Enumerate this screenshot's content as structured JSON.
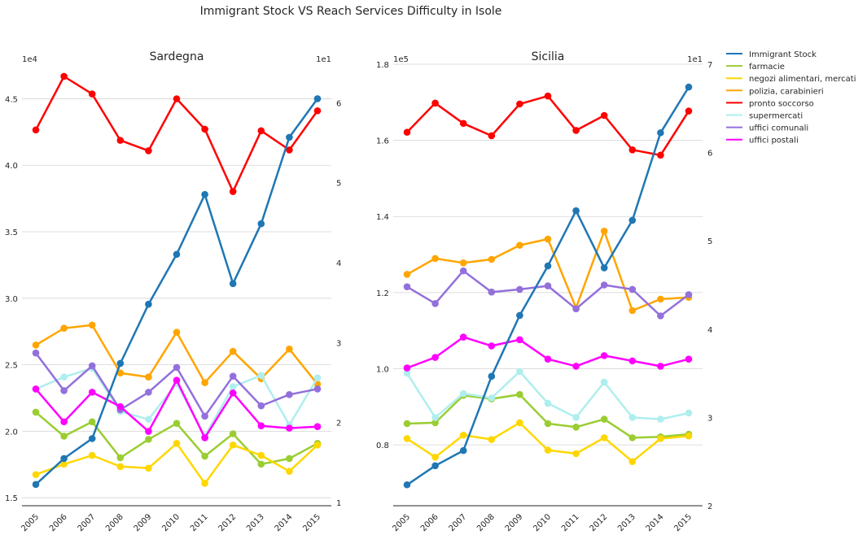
{
  "suptitle": "Immigrant Stock VS Reach Services Difficulty in Isole",
  "legend": [
    {
      "name": "Immigrant Stock",
      "color": "#1f77b4"
    },
    {
      "name": "farmacie",
      "color": "#9acd32"
    },
    {
      "name": "negozi alimentari, mercati",
      "color": "#ffd700"
    },
    {
      "name": "polizia, carabinieri",
      "color": "#ffa500"
    },
    {
      "name": "pronto soccorso",
      "color": "#ff0000"
    },
    {
      "name": "supermercati",
      "color": "#afeeee"
    },
    {
      "name": "uffici comunali",
      "color": "#9370db"
    },
    {
      "name": "uffici postali",
      "color": "#ff00ff"
    }
  ],
  "chart_data": [
    {
      "type": "line",
      "title": "Sardegna",
      "x": [
        "2005",
        "2006",
        "2007",
        "2008",
        "2009",
        "2010",
        "2011",
        "2012",
        "2013",
        "2014",
        "2015"
      ],
      "grid": true,
      "left_axis": {
        "ylim": [
          14400,
          46800
        ],
        "ticks": [
          "1.5",
          "2.0",
          "2.5",
          "3.0",
          "3.5",
          "4.0",
          "4.5"
        ],
        "tick_values": [
          15000,
          20000,
          25000,
          30000,
          35000,
          40000,
          45000
        ],
        "offset_label": "1e4"
      },
      "right_axis": {
        "ylim": [
          9.6,
          63.5
        ],
        "ticks": [
          "1",
          "2",
          "3",
          "4",
          "5",
          "6"
        ],
        "tick_values": [
          10,
          20,
          30,
          40,
          50,
          60
        ],
        "offset_label": "1e1"
      },
      "series": [
        {
          "name": "Immigrant Stock",
          "axis": "left",
          "values": [
            16000,
            17950,
            19450,
            25100,
            29550,
            33300,
            37800,
            31100,
            35600,
            42100,
            45000
          ]
        },
        {
          "name": "farmacie",
          "axis": "right",
          "values": [
            21.3,
            18.3,
            20.1,
            15.6,
            17.9,
            19.9,
            15.8,
            18.6,
            14.8,
            15.5,
            17.4
          ]
        },
        {
          "name": "negozi alimentari, mercati",
          "axis": "right",
          "values": [
            13.5,
            14.8,
            15.9,
            14.5,
            14.3,
            17.4,
            12.4,
            17.2,
            15.9,
            13.9,
            17.2
          ]
        },
        {
          "name": "polizia, carabinieri",
          "axis": "right",
          "values": [
            29.7,
            31.8,
            32.2,
            26.2,
            25.7,
            31.3,
            25.0,
            28.9,
            25.5,
            29.2,
            24.8
          ]
        },
        {
          "name": "pronto soccorso",
          "axis": "right",
          "values": [
            56.6,
            63.3,
            61.1,
            55.3,
            54.0,
            60.5,
            56.7,
            48.9,
            56.5,
            54.1,
            59.0
          ]
        },
        {
          "name": "supermercati",
          "axis": "right",
          "values": [
            24.2,
            25.7,
            26.8,
            21.4,
            20.4,
            24.9,
            18.3,
            24.5,
            25.9,
            19.7,
            25.6
          ]
        },
        {
          "name": "uffici comunali",
          "axis": "right",
          "values": [
            28.7,
            24.0,
            27.1,
            21.6,
            23.8,
            26.9,
            20.8,
            25.8,
            22.1,
            23.5,
            24.2
          ]
        },
        {
          "name": "uffici postali",
          "axis": "right",
          "values": [
            24.2,
            20.1,
            23.8,
            22.0,
            18.9,
            25.3,
            18.1,
            23.7,
            19.6,
            19.3,
            19.5
          ]
        }
      ]
    },
    {
      "type": "line",
      "title": "Sicilia",
      "x": [
        "2005",
        "2006",
        "2007",
        "2008",
        "2009",
        "2010",
        "2011",
        "2012",
        "2013",
        "2014",
        "2015"
      ],
      "grid": true,
      "left_axis": {
        "ylim": [
          64000,
          180000
        ],
        "ticks": [
          "0.8",
          "1.0",
          "1.2",
          "1.4",
          "1.6",
          "1.8"
        ],
        "tick_values": [
          80000,
          100000,
          120000,
          140000,
          160000,
          180000
        ],
        "offset_label": "1e5"
      },
      "right_axis": {
        "ylim": [
          20,
          70
        ],
        "ticks": [
          "2",
          "3",
          "4",
          "5",
          "6",
          "7"
        ],
        "tick_values": [
          20,
          30,
          40,
          50,
          60,
          70
        ],
        "offset_label": "1e1"
      },
      "series": [
        {
          "name": "Immigrant Stock",
          "axis": "left",
          "values": [
            69500,
            74500,
            78500,
            98000,
            114000,
            127000,
            141500,
            126500,
            139000,
            162000,
            174000
          ]
        },
        {
          "name": "farmacie",
          "axis": "right",
          "values": [
            29.3,
            29.4,
            32.5,
            32.1,
            32.6,
            29.3,
            28.9,
            29.8,
            27.7,
            27.8,
            28.1
          ]
        },
        {
          "name": "negozi alimentari, mercati",
          "axis": "right",
          "values": [
            27.6,
            25.5,
            28.0,
            27.5,
            29.4,
            26.3,
            25.9,
            27.7,
            25.0,
            27.6,
            27.9
          ]
        },
        {
          "name": "polizia, carabinieri",
          "axis": "right",
          "values": [
            46.2,
            48.0,
            47.5,
            47.9,
            49.5,
            50.2,
            42.4,
            51.1,
            42.1,
            43.4,
            43.6
          ]
        },
        {
          "name": "pronto soccorso",
          "axis": "right",
          "values": [
            62.3,
            65.6,
            63.3,
            61.9,
            65.5,
            66.4,
            62.5,
            64.2,
            60.3,
            59.7,
            64.7
          ]
        },
        {
          "name": "supermercati",
          "axis": "right",
          "values": [
            35.0,
            30.0,
            32.7,
            32.2,
            35.2,
            31.6,
            30.0,
            34.0,
            30.0,
            29.8,
            30.5
          ]
        },
        {
          "name": "uffici comunali",
          "axis": "right",
          "values": [
            44.8,
            42.9,
            46.6,
            44.2,
            44.5,
            44.9,
            42.3,
            45.0,
            44.5,
            41.5,
            43.9
          ]
        },
        {
          "name": "uffici postali",
          "axis": "right",
          "values": [
            35.6,
            36.8,
            39.1,
            38.1,
            38.8,
            36.6,
            35.8,
            37.0,
            36.4,
            35.8,
            36.6
          ]
        }
      ]
    }
  ]
}
